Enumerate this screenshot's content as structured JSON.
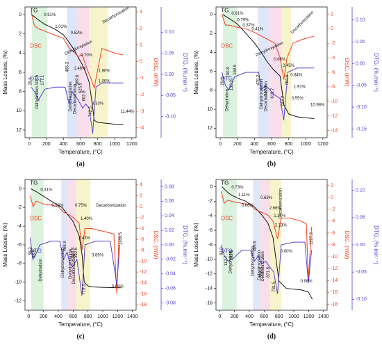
{
  "chart_data": [
    {
      "type": "line",
      "panel": "(a)",
      "xlabel": "Temperature, (°C)",
      "ylabel": "Mass Losses, (%)",
      "y2label": "DSC, (mW)",
      "y3label": "DTG, (%.min⁻¹)",
      "xlim": [
        -50,
        1250
      ],
      "xticks": [
        0,
        200,
        400,
        600,
        800,
        1000,
        1200
      ],
      "ylim": [
        12.8,
        -0.8
      ],
      "yticks": [
        0,
        2,
        4,
        6,
        8,
        10,
        12
      ],
      "y2lim": [
        -4.6,
        3.3
      ],
      "y2ticks": [
        3,
        2,
        1,
        0,
        -1,
        -2,
        -3,
        -4
      ],
      "y3lim": [
        -0.15,
        0.16
      ],
      "y3ticks": [
        {
          "value": 0.1,
          "label": "0.10"
        },
        0.05,
        {
          "value": 0,
          "label": "0.00"
        },
        -0.05,
        {
          "value": -0.1,
          "label": "-0.10"
        }
      ],
      "regions": [
        {
          "x": [
            30,
            210
          ],
          "color": "#d6f0d8"
        },
        {
          "x": [
            440,
            560
          ],
          "color": "#d9e2f7"
        },
        {
          "x": [
            560,
            700
          ],
          "color": "#f7d9e7"
        },
        {
          "x": [
            700,
            920
          ],
          "color": "#f6f2c2"
        }
      ],
      "series": [
        {
          "name": "TG",
          "color": "#111111",
          "axis": "y",
          "x": [
            30,
            100,
            180,
            300,
            400,
            460,
            520,
            570,
            620,
            660,
            700,
            740,
            760,
            800,
            900,
            1000,
            1100
          ],
          "values": [
            0,
            0.5,
            1.0,
            1.5,
            2.1,
            2.8,
            3.6,
            4.4,
            5.2,
            6.0,
            7.0,
            9.5,
            11.0,
            11.2,
            11.3,
            11.4,
            11.44
          ]
        },
        {
          "name": "DSC",
          "color": "#f0401e",
          "axis": "y2",
          "x": [
            20,
            60,
            100,
            200,
            300,
            400,
            470,
            520,
            570,
            620,
            680,
            720,
            760,
            800,
            850,
            900,
            1000,
            1100
          ],
          "values": [
            3,
            2.2,
            2.0,
            1.8,
            1.6,
            1.4,
            0.8,
            0.6,
            0.3,
            0.4,
            -0.5,
            -1,
            -1.6,
            -0.5,
            0.8,
            0.7,
            0.5,
            0.4
          ]
        },
        {
          "name": "DTG",
          "color": "#5a3fd0",
          "axis": "y3",
          "x": [
            20,
            60,
            110,
            180,
            300,
            420,
            465,
            500,
            570,
            625,
            660,
            700,
            742,
            780,
            850,
            950,
            1050,
            1100
          ],
          "values": [
            -0.03,
            -0.04,
            -0.06,
            -0.035,
            -0.03,
            -0.03,
            -0.07,
            -0.04,
            -0.06,
            -0.08,
            -0.07,
            -0.08,
            -0.14,
            -0.03,
            -0.02,
            -0.02,
            -0.02,
            -0.02
          ]
        }
      ],
      "annotations": [
        "0.91%",
        "1.01%",
        "0.52%",
        "0.70%",
        "1.46%",
        "1.90%",
        "1.00%",
        "3.33%",
        "11.44%",
        "Dehydroxylation",
        "Decarbonization",
        "Dehydration",
        "Dehydroxylation",
        "Decarbonization",
        "29.6",
        "108.5",
        "177.1",
        "465.3",
        "569.6",
        "625.5",
        "662.8",
        "742.5"
      ]
    },
    {
      "type": "line",
      "panel": "(b)",
      "xlabel": "Temperature, (°C)",
      "ylabel": "Mass Losses, (%)",
      "y2label": "DSC, (mW)",
      "y3label": "DTG, (%.min⁻¹)",
      "xlim": [
        -50,
        1250
      ],
      "xticks": [
        0,
        200,
        400,
        600,
        800,
        1000,
        1200
      ],
      "ylim": [
        13,
        -0.8
      ],
      "yticks": [
        0,
        2,
        4,
        6,
        8,
        10,
        12
      ],
      "y2lim": [
        -15,
        3
      ],
      "y2ticks": [
        2,
        0,
        -2,
        -4,
        -6,
        -8,
        -10,
        -12,
        -14
      ],
      "y3lim": [
        -0.17,
        0.13
      ],
      "y3ticks": [
        {
          "value": 0.1,
          "label": "0.10"
        },
        0.05,
        {
          "value": 0,
          "label": "0.00"
        },
        -0.05,
        {
          "value": -0.1,
          "label": "-0.10"
        },
        -0.15
      ],
      "regions": [
        {
          "x": [
            30,
            200
          ],
          "color": "#d6f0d8"
        },
        {
          "x": [
            440,
            570
          ],
          "color": "#d9e2f7"
        },
        {
          "x": [
            570,
            720
          ],
          "color": "#f7d9e7"
        },
        {
          "x": [
            720,
            830
          ],
          "color": "#f6f2c2"
        }
      ],
      "series": [
        {
          "name": "TG",
          "color": "#111111",
          "axis": "y",
          "x": [
            30,
            100,
            200,
            300,
            400,
            480,
            550,
            620,
            700,
            743,
            800,
            900,
            1000,
            1100
          ],
          "values": [
            0,
            0.4,
            1.0,
            2.0,
            3.0,
            4.0,
            5.0,
            5.8,
            6.5,
            9.5,
            10.5,
            10.8,
            10.9,
            10.98
          ]
        },
        {
          "name": "DSC",
          "color": "#f0401e",
          "axis": "y2",
          "x": [
            20,
            60,
            100,
            200,
            300,
            400,
            480,
            560,
            640,
            700,
            743,
            780,
            850,
            950,
            1100
          ],
          "values": [
            2,
            0.5,
            0.5,
            0.2,
            0,
            -0.5,
            -1,
            -1.5,
            -2,
            -4,
            -7,
            -4,
            -2,
            -1.5,
            -1
          ]
        },
        {
          "name": "DTG",
          "color": "#5a3fd0",
          "axis": "y3",
          "x": [
            20,
            60,
            100,
            170,
            300,
            450,
            479,
            530,
            580,
            620,
            700,
            743,
            790,
            900,
            1100
          ],
          "values": [
            -0.02,
            -0.05,
            -0.06,
            -0.03,
            -0.02,
            -0.02,
            -0.06,
            -0.05,
            -0.06,
            -0.07,
            -0.08,
            -0.13,
            -0.02,
            -0.01,
            -0.01
          ]
        }
      ],
      "annotations": [
        "0.81%",
        "0.79%",
        "0.37%",
        "0.41%",
        "Dehydroxylation",
        "0.66%",
        "2.45%",
        "0.84%",
        "1.91%",
        "0.55%",
        "10.98%",
        "Decarbonization",
        "Dehydration",
        "Dehydroxylation",
        "Decarbonization",
        "29.6",
        "100.8",
        "150.2",
        "169.5",
        "479.2",
        "542.9",
        "619.7",
        "743.3",
        "784.5"
      ]
    },
    {
      "type": "line",
      "panel": "(c)",
      "xlabel": "Temperature, (°C)",
      "ylabel": "Mass Losses, (%)",
      "y2label": "DSC, (mW)",
      "y3label": "DTG, (%.min⁻¹)",
      "xlim": [
        -50,
        1450
      ],
      "xticks": [
        0,
        200,
        400,
        600,
        800,
        1000,
        1200,
        1400
      ],
      "ylim": [
        -13,
        1
      ],
      "yticks": [
        0,
        -2,
        -4,
        -6,
        -8,
        -10,
        -12
      ],
      "y2lim": [
        -19,
        5
      ],
      "y2ticks": [
        4,
        2,
        0,
        -2,
        -4,
        -6,
        -8,
        -10,
        -12,
        -14,
        -16,
        -18
      ],
      "y3lim": [
        -0.09,
        0.09
      ],
      "y3ticks": [
        0.08,
        0.06,
        0.04,
        0.02,
        {
          "value": 0,
          "label": "0.00"
        },
        -0.02,
        -0.04,
        -0.06,
        -0.08
      ],
      "regions": [
        {
          "x": [
            30,
            200
          ],
          "color": "#d6f0d8"
        },
        {
          "x": [
            440,
            520
          ],
          "color": "#d9e2f7"
        },
        {
          "x": [
            520,
            640
          ],
          "color": "#f7d9e7"
        },
        {
          "x": [
            640,
            830
          ],
          "color": "#f6f2c2"
        }
      ],
      "series": [
        {
          "name": "TG",
          "color": "#111111",
          "axis": "y",
          "x": [
            30,
            100,
            200,
            300,
            450,
            600,
            680,
            720,
            750,
            800,
            850,
            1000,
            1200,
            1250
          ],
          "values": [
            0,
            -0.3,
            -0.8,
            -1.3,
            -2,
            -3.5,
            -5,
            -7,
            -10,
            -10.4,
            -10.5,
            -10.55,
            -10.6,
            -10.6
          ]
        },
        {
          "name": "DSC",
          "color": "#f0401e",
          "axis": "y2",
          "x": [
            20,
            60,
            100,
            200,
            300,
            400,
            470,
            550,
            600,
            680,
            719,
            760,
            850,
            1000,
            1150,
            1189,
            1220
          ],
          "values": [
            2,
            0,
            1,
            0.5,
            0.3,
            0,
            -1,
            -1.5,
            -2,
            -3,
            -8,
            -4,
            -4,
            -4.5,
            -5,
            -16,
            -5
          ]
        },
        {
          "name": "DTG",
          "color": "#5a3fd0",
          "axis": "y3",
          "x": [
            20,
            55,
            88,
            150,
            300,
            420,
            468,
            520,
            553,
            592,
            650,
            719,
            760,
            900,
            1100,
            1189.5,
            1230
          ],
          "values": [
            0.01,
            -0.02,
            -0.015,
            0,
            0.005,
            0.005,
            -0.02,
            -0.01,
            -0.025,
            -0.03,
            -0.02,
            -0.07,
            0,
            0.005,
            0.005,
            -0.055,
            0
          ]
        }
      ],
      "annotations": [
        "0.31%",
        "0.93%",
        "0.75%",
        "1.40%",
        "2.43%",
        "3.85%",
        "0.68%",
        "Decarbonization",
        "Dehydration",
        "Dehydroxylation",
        "Dehydroxylation",
        "Decarbonization",
        "55.3",
        "88.9",
        "468.9",
        "553.8",
        "592.6",
        "719.3",
        "1189.5"
      ]
    },
    {
      "type": "line",
      "panel": "(d)",
      "xlabel": "Temperature, (°C)",
      "ylabel": "Mass Losses, (%)",
      "y2label": "DSC, (mW)",
      "y3label": "DTG, (%.min⁻¹)",
      "xlim": [
        -50,
        1450
      ],
      "xticks": [
        0,
        200,
        400,
        600,
        800,
        1000,
        1200,
        1400
      ],
      "ylim": [
        -17,
        1
      ],
      "yticks": [
        0,
        -2,
        -4,
        -6,
        -8,
        -10,
        -12,
        -14,
        -16
      ],
      "y2lim": [
        -19,
        3
      ],
      "y2ticks": [
        2,
        0,
        -2,
        -4,
        -6,
        -8,
        -10,
        -12,
        -14,
        -16,
        -18
      ],
      "y3lim": [
        -0.12,
        0.12
      ],
      "y3ticks": [
        {
          "value": 0.1,
          "label": "0.10"
        },
        0.05,
        {
          "value": 0,
          "label": "0.00"
        },
        -0.05,
        {
          "value": -0.1,
          "label": "-0.10"
        }
      ],
      "regions": [
        {
          "x": [
            30,
            230
          ],
          "color": "#d6f0d8"
        },
        {
          "x": [
            450,
            550
          ],
          "color": "#d9e2f7"
        },
        {
          "x": [
            550,
            680
          ],
          "color": "#f7d9e7"
        },
        {
          "x": [
            680,
            830
          ],
          "color": "#f6f2c2"
        }
      ],
      "series": [
        {
          "name": "TG",
          "color": "#111111",
          "axis": "y",
          "x": [
            30,
            100,
            150,
            250,
            350,
            470,
            560,
            650,
            720,
            760,
            800,
            900,
            1100,
            1197,
            1250
          ],
          "values": [
            0,
            -0.7,
            -1.1,
            -1.6,
            -2,
            -2.8,
            -3.8,
            -5,
            -7,
            -10,
            -13,
            -14,
            -14.2,
            -14.5,
            -15.5
          ]
        },
        {
          "name": "DSC",
          "color": "#f0401e",
          "axis": "y2",
          "x": [
            20,
            62,
            112,
            200,
            300,
            400,
            470,
            560,
            650,
            720,
            781,
            830,
            950,
            1100,
            1170,
            1197,
            1240
          ],
          "values": [
            1,
            -1,
            -0.5,
            -0.8,
            -1,
            -1.2,
            -2,
            -2.5,
            -3,
            -4,
            -7,
            -3.5,
            -3.5,
            -4,
            -4.5,
            -14,
            -5
          ]
        },
        {
          "name": "DTG",
          "color": "#5a3fd0",
          "axis": "y3",
          "x": [
            20,
            62,
            112,
            183,
            300,
            420,
            469,
            520,
            566,
            620,
            671,
            730,
            781,
            830,
            1000,
            1150,
            1197.2,
            1240
          ],
          "values": [
            0,
            -0.02,
            -0.03,
            -0.025,
            -0.01,
            -0.01,
            -0.03,
            -0.02,
            -0.035,
            -0.03,
            -0.04,
            -0.05,
            -0.09,
            0,
            0.005,
            0.005,
            -0.07,
            -0.01
          ]
        }
      ],
      "annotations": [
        "0.73%",
        "1.11%",
        "0.66%",
        "0.63%",
        "2.66%",
        "1.37%",
        "2.13%",
        "3.00%",
        "0.98%",
        "Decarbonization",
        "Dehydration",
        "Dehydroxylation",
        "Dehydroxylation",
        "Decarbonization",
        "62.0",
        "112.7",
        "183.6",
        "469.6",
        "566.5",
        "671.8",
        "781.5",
        "1197.2"
      ]
    }
  ]
}
